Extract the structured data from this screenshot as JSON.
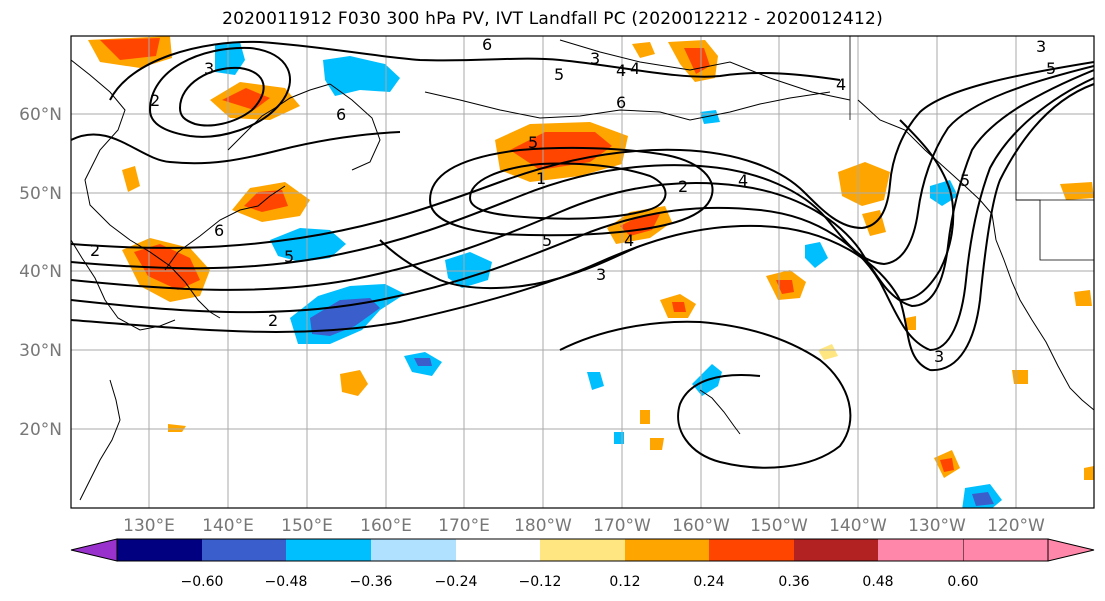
{
  "title": "2020011912 F030 300 hPa PV, IVT Landfall PC (2020012212 - 2020012412)",
  "map": {
    "lat_labels": [
      "60°N",
      "50°N",
      "40°N",
      "30°N",
      "20°N"
    ],
    "lon_labels": [
      "130°E",
      "140°E",
      "150°E",
      "160°E",
      "170°E",
      "180°W",
      "170°W",
      "160°W",
      "150°W",
      "140°W",
      "130°W",
      "120°W"
    ],
    "gridline_color": "#aaaaaa",
    "tick_label_color": "#777777",
    "contour_color": "#000000",
    "contour_labels": [
      "2",
      "3",
      "6",
      "5",
      "4",
      "6",
      "4",
      "5",
      "3",
      "5",
      "1",
      "2",
      "4",
      "5",
      "4",
      "3",
      "2",
      "5",
      "6",
      "3",
      "3",
      "2",
      "4",
      "5",
      "6"
    ]
  },
  "colorbar": {
    "ticks": [
      "−0.60",
      "−0.48",
      "−0.36",
      "−0.24",
      "−0.12",
      "0.12",
      "0.24",
      "0.36",
      "0.48",
      "0.60"
    ],
    "colors": [
      "#9932cc",
      "#000080",
      "#3a5fcd",
      "#00bfff",
      "#b0e2ff",
      "#ffffff",
      "#ffe680",
      "#ffa500",
      "#ff4500",
      "#b22222",
      "#ff88aa"
    ]
  }
}
